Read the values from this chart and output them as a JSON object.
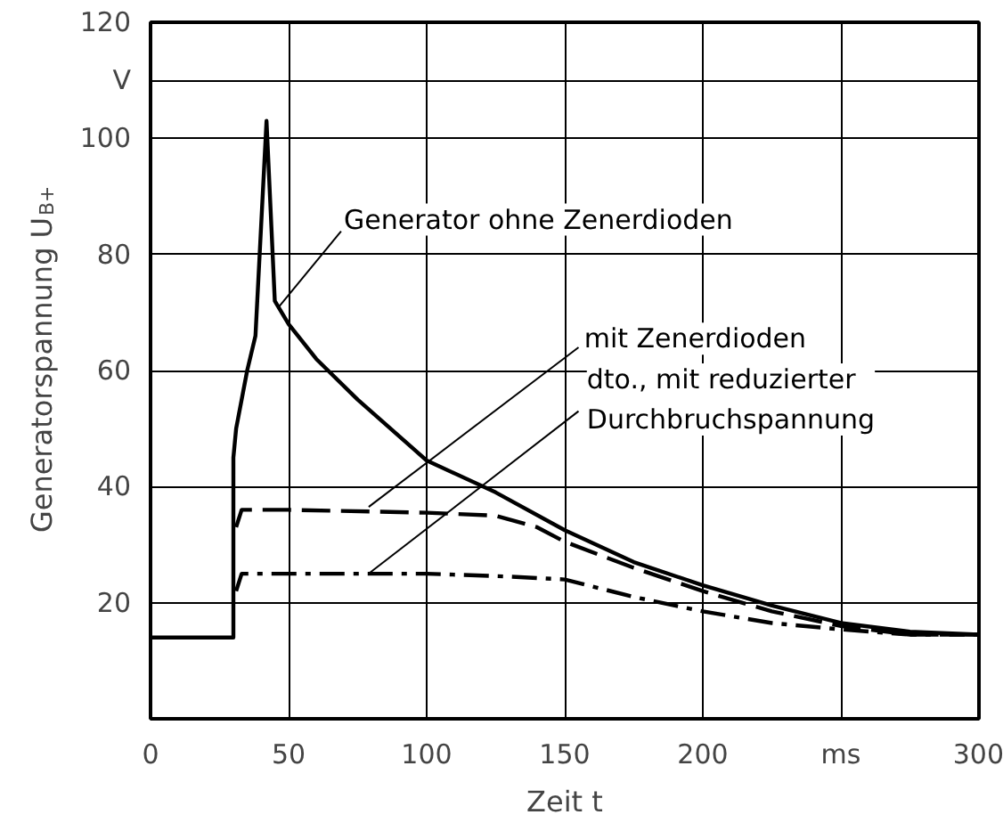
{
  "chart_data": {
    "type": "line",
    "xlabel": "Zeit t",
    "ylabel": "Generatorspannung U$_{B+}$",
    "xlim": [
      0,
      300
    ],
    "ylim": [
      0,
      120
    ],
    "xticks": [
      0,
      50,
      100,
      150,
      200,
      {
        "value": 250,
        "label": "ms"
      },
      300
    ],
    "yticks": [
      20,
      40,
      60,
      80,
      100,
      {
        "value": 110,
        "label": "V"
      },
      120
    ],
    "grid": true,
    "marker": "none",
    "series": [
      {
        "name": "Generator ohne Zenerdioden",
        "color": "#000000",
        "line_style": "solid",
        "x": [
          0,
          30,
          30,
          31,
          35,
          38,
          42,
          45,
          50,
          60,
          75,
          100,
          125,
          150,
          175,
          200,
          225,
          250,
          275,
          300
        ],
        "values": [
          14,
          14,
          45,
          50,
          60,
          66,
          103,
          72,
          68,
          62,
          55,
          44.5,
          39,
          32.5,
          27,
          23,
          19.5,
          16.5,
          15,
          14.5
        ]
      },
      {
        "name": "mit Zenerdioden",
        "color": "#000000",
        "line_style": "dashed",
        "x": [
          31,
          33,
          50,
          100,
          125,
          140,
          150,
          175,
          200,
          225,
          250,
          275,
          300
        ],
        "values": [
          33,
          36,
          36,
          35.5,
          35,
          33,
          30.5,
          26,
          22,
          18.5,
          16,
          14.5,
          14.5
        ]
      },
      {
        "name": "dto., mit reduzierter\nDurchbruchspannung",
        "color": "#000000",
        "line_style": "dashdot",
        "x": [
          31,
          33,
          50,
          100,
          130,
          150,
          175,
          200,
          225,
          250,
          275,
          300
        ],
        "values": [
          22,
          25,
          25,
          25,
          24.5,
          24,
          21,
          18.5,
          16.5,
          15.4,
          14.5,
          14.5
        ]
      }
    ]
  }
}
